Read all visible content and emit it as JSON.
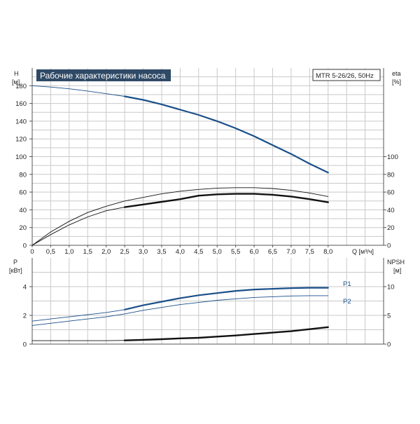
{
  "title_box": "Рабочие характеристики насоса",
  "model_box": "MTR 5-26/26, 50Hz",
  "colors": {
    "blue": "#1a4f8a",
    "black": "#111111",
    "grid": "#c9c9c9",
    "title_bg": "#2f4a66"
  },
  "chart_data": [
    {
      "type": "line",
      "name": "upper",
      "left_axis": {
        "label": "H",
        "unit": "[м]",
        "ylim": [
          0,
          200
        ],
        "ticks": [
          0,
          20,
          40,
          60,
          80,
          100,
          120,
          140,
          160,
          180
        ]
      },
      "right_axis": {
        "label": "eta",
        "unit": "[%]",
        "ylim": [
          0,
          200
        ],
        "ticks": [
          0,
          20,
          40,
          60,
          80,
          100
        ]
      },
      "x_axis": {
        "label": "Q [м³/ч]",
        "xlim": [
          0,
          9.5
        ],
        "ticks": [
          "0",
          "0,5",
          "1,0",
          "1,5",
          "2,0",
          "2,5",
          "3,0",
          "3,5",
          "4,0",
          "4,5",
          "5,0",
          "5,5",
          "6,0",
          "6,5",
          "7,0",
          "7,5",
          "8,0"
        ]
      },
      "grid": true,
      "series": [
        {
          "style": "blue-thin",
          "axis": "left",
          "points": [
            [
              0,
              180
            ],
            [
              0.5,
              178.5
            ],
            [
              1,
              176.5
            ],
            [
              1.5,
              174
            ],
            [
              2,
              171
            ],
            [
              2.5,
              168
            ]
          ]
        },
        {
          "style": "blue-thick",
          "axis": "left",
          "points": [
            [
              2.5,
              168
            ],
            [
              3,
              164
            ],
            [
              3.5,
              159
            ],
            [
              4,
              153
            ],
            [
              4.5,
              147
            ],
            [
              5,
              140
            ],
            [
              5.5,
              132
            ],
            [
              6,
              123
            ],
            [
              6.5,
              113
            ],
            [
              7,
              103
            ],
            [
              7.5,
              92
            ],
            [
              8,
              82
            ]
          ]
        },
        {
          "style": "black-thin",
          "axis": "right",
          "points": [
            [
              0,
              0
            ],
            [
              0.5,
              12
            ],
            [
              1,
              23
            ],
            [
              1.5,
              32
            ],
            [
              2,
              39
            ],
            [
              2.5,
              43
            ],
            [
              3,
              46
            ],
            [
              3.5,
              49
            ],
            [
              4,
              52
            ],
            [
              4.5,
              56
            ],
            [
              5,
              57.5
            ],
            [
              5.5,
              58
            ],
            [
              6,
              58
            ],
            [
              6.5,
              57
            ],
            [
              7,
              55
            ],
            [
              7.5,
              52
            ],
            [
              8,
              48.5
            ]
          ]
        },
        {
          "style": "black-thick",
          "axis": "right",
          "points": [
            [
              2.5,
              43
            ],
            [
              3,
              46
            ],
            [
              3.5,
              49
            ],
            [
              4,
              52
            ],
            [
              4.5,
              56
            ],
            [
              5,
              57.5
            ],
            [
              5.5,
              58
            ],
            [
              6,
              58
            ],
            [
              6.5,
              57
            ],
            [
              7,
              55
            ],
            [
              7.5,
              52
            ],
            [
              8,
              48.5
            ]
          ]
        },
        {
          "style": "black-thin",
          "axis": "right",
          "points": [
            [
              0,
              0
            ],
            [
              0.5,
              15
            ],
            [
              1,
              27
            ],
            [
              1.5,
              37
            ],
            [
              2,
              44
            ],
            [
              2.5,
              50
            ],
            [
              3,
              54
            ],
            [
              3.5,
              58
            ],
            [
              4,
              61
            ],
            [
              4.5,
              63
            ],
            [
              5,
              64.5
            ],
            [
              5.5,
              65
            ],
            [
              6,
              65
            ],
            [
              6.5,
              64
            ],
            [
              7,
              62
            ],
            [
              7.5,
              59
            ],
            [
              8,
              55
            ]
          ]
        }
      ]
    },
    {
      "type": "line",
      "name": "lower",
      "left_axis": {
        "label": "P",
        "unit": "[кВт]",
        "ylim": [
          0,
          6
        ],
        "ticks": [
          0,
          2,
          4
        ]
      },
      "right_axis": {
        "label": "NPSH",
        "unit": "[м]",
        "ylim": [
          0,
          15
        ],
        "ticks": [
          0,
          5,
          10
        ]
      },
      "grid": true,
      "series": [
        {
          "name": "P1",
          "style": "blue-thin",
          "axis": "left",
          "points": [
            [
              0,
              1.6
            ],
            [
              0.5,
              1.75
            ],
            [
              1,
              1.9
            ],
            [
              1.5,
              2.05
            ],
            [
              2,
              2.2
            ],
            [
              2.5,
              2.4
            ]
          ]
        },
        {
          "name": "P1",
          "style": "blue-thick",
          "axis": "left",
          "points": [
            [
              2.5,
              2.4
            ],
            [
              3,
              2.7
            ],
            [
              3.5,
              2.95
            ],
            [
              4,
              3.2
            ],
            [
              4.5,
              3.4
            ],
            [
              5,
              3.55
            ],
            [
              5.5,
              3.7
            ],
            [
              6,
              3.8
            ],
            [
              6.5,
              3.85
            ],
            [
              7,
              3.9
            ],
            [
              7.5,
              3.92
            ],
            [
              8,
              3.92
            ]
          ]
        },
        {
          "name": "P2",
          "style": "blue-thin",
          "axis": "left",
          "points": [
            [
              0,
              1.3
            ],
            [
              0.5,
              1.45
            ],
            [
              1,
              1.6
            ],
            [
              1.5,
              1.75
            ],
            [
              2,
              1.9
            ],
            [
              2.5,
              2.1
            ],
            [
              3,
              2.35
            ],
            [
              3.5,
              2.55
            ],
            [
              4,
              2.75
            ],
            [
              4.5,
              2.9
            ],
            [
              5,
              3.05
            ],
            [
              5.5,
              3.15
            ],
            [
              6,
              3.25
            ],
            [
              6.5,
              3.3
            ],
            [
              7,
              3.35
            ],
            [
              7.5,
              3.37
            ],
            [
              8,
              3.37
            ]
          ]
        },
        {
          "style": "black-thin",
          "axis": "right",
          "points": [
            [
              0,
              0.6
            ],
            [
              0.5,
              0.6
            ],
            [
              1,
              0.6
            ],
            [
              1.5,
              0.6
            ],
            [
              2,
              0.6
            ],
            [
              2.5,
              0.65
            ]
          ]
        },
        {
          "style": "black-thick",
          "axis": "right",
          "points": [
            [
              2.5,
              0.65
            ],
            [
              3,
              0.75
            ],
            [
              3.5,
              0.85
            ],
            [
              4,
              1.0
            ],
            [
              4.5,
              1.1
            ],
            [
              5,
              1.3
            ],
            [
              5.5,
              1.5
            ],
            [
              6,
              1.75
            ],
            [
              6.5,
              2.0
            ],
            [
              7,
              2.25
            ],
            [
              7.5,
              2.6
            ],
            [
              8,
              2.95
            ]
          ]
        }
      ]
    }
  ]
}
